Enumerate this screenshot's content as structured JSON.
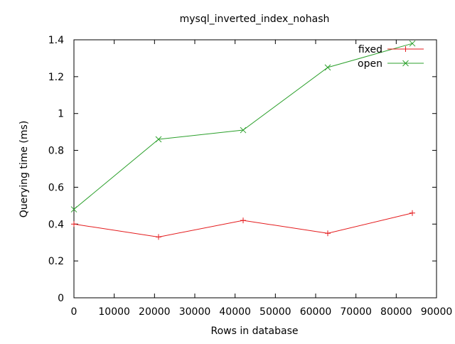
{
  "chart_data": {
    "type": "line",
    "title": "mysql_inverted_index_nohash",
    "xlabel": "Rows in database",
    "ylabel": "Querying time (ms)",
    "xlim": [
      0,
      90000
    ],
    "ylim": [
      0,
      1.4
    ],
    "x_ticks": [
      0,
      10000,
      20000,
      30000,
      40000,
      50000,
      60000,
      70000,
      80000,
      90000
    ],
    "y_ticks": [
      0,
      0.2,
      0.4,
      0.6,
      0.8,
      1,
      1.2,
      1.4
    ],
    "x_tick_labels": [
      "0",
      "10000",
      "20000",
      "30000",
      "40000",
      "50000",
      "60000",
      "70000",
      "80000",
      "90000"
    ],
    "y_tick_labels": [
      "0",
      "0.2",
      "0.4",
      "0.6",
      "0.8",
      "1",
      "1.2",
      "1.4"
    ],
    "grid": false,
    "legend_position": "top-right",
    "series": [
      {
        "name": "fixed",
        "color": "#e41a1c",
        "marker": "plus",
        "x": [
          0,
          21000,
          42000,
          63000,
          84000
        ],
        "y": [
          0.4,
          0.33,
          0.42,
          0.35,
          0.46
        ]
      },
      {
        "name": "open",
        "color": "#2ca02c",
        "marker": "cross",
        "x": [
          0,
          21000,
          42000,
          63000,
          84000
        ],
        "y": [
          0.48,
          0.86,
          0.91,
          1.25,
          1.38
        ]
      }
    ]
  }
}
